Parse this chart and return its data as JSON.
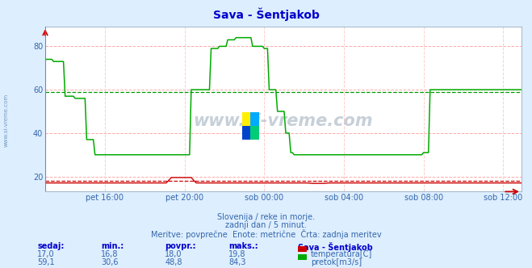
{
  "title": "Sava - Šentjakob",
  "bg_color": "#ddeeff",
  "plot_bg_color": "#ffffff",
  "xlabel_ticks": [
    "pet 16:00",
    "pet 20:00",
    "sob 00:00",
    "sob 04:00",
    "sob 08:00",
    "sob 12:00"
  ],
  "ylabel_ticks": [
    20,
    40,
    60,
    80
  ],
  "ymin": 13,
  "ymax": 89,
  "avg_line_temp": 18.0,
  "avg_line_flow": 59.0,
  "watermark_text": "www.si-vreme.com",
  "sub_text1": "Slovenija / reke in morje.",
  "sub_text2": "zadnji dan / 5 minut.",
  "sub_text3": "Meritve: povprečne  Enote: metrične  Črta: zadnja meritev",
  "table_headers": [
    "sedaj:",
    "min.:",
    "povpr.:",
    "maks.:",
    "Sava - Šentjakob"
  ],
  "row1": [
    "17,0",
    "16,8",
    "18,0",
    "19,8",
    "temperatura[C]"
  ],
  "row2": [
    "59,1",
    "30,6",
    "48,8",
    "84,3",
    "pretok[m3/s]"
  ],
  "temp_color": "#cc0000",
  "flow_color": "#00aa00",
  "sidebar_text": "www.si-vreme.com",
  "title_color": "#0000cc",
  "text_color": "#3366aa",
  "table_label_color": "#0000cc",
  "grid_h_color": "#ffaaaa",
  "grid_v_color": "#ffcccc",
  "avg_temp_color": "#cc0000",
  "avg_flow_color": "#009900",
  "border_color": "#aabbcc",
  "logo_colors": [
    "#ffee00",
    "#00aaff",
    "#0044cc",
    "#00cc77"
  ]
}
